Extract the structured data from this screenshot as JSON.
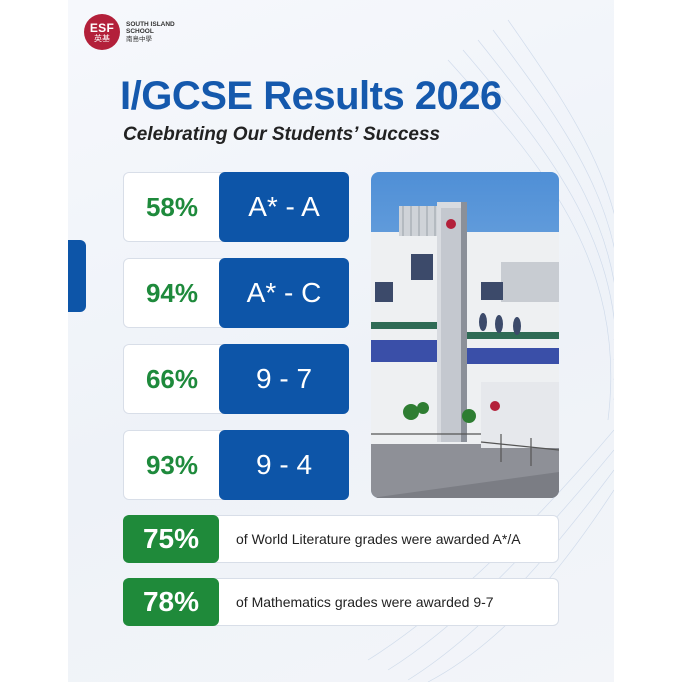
{
  "logo": {
    "mark_line1": "ESF",
    "mark_line2": "英基",
    "school_line1": "SOUTH ISLAND",
    "school_line2": "SCHOOL",
    "school_cn": "南島中學"
  },
  "title": "I/GCSE Results 2026",
  "subtitle": "Celebrating Our Students’ Success",
  "stats": [
    {
      "percent": "58%",
      "grade": "A* - A"
    },
    {
      "percent": "94%",
      "grade": "A* - C"
    },
    {
      "percent": "66%",
      "grade": "9 - 7"
    },
    {
      "percent": "93%",
      "grade": "9 - 4"
    }
  ],
  "highlights": [
    {
      "percent": "75%",
      "text": "of World Literature grades were awarded A*/A"
    },
    {
      "percent": "78%",
      "text": "of Mathematics grades were awarded 9-7"
    }
  ],
  "colors": {
    "brand_blue": "#0d55a8",
    "title_blue": "#1559ad",
    "stat_green": "#1e8a3c",
    "highlight_green": "#1f8a3a",
    "logo_red": "#b3203a"
  }
}
